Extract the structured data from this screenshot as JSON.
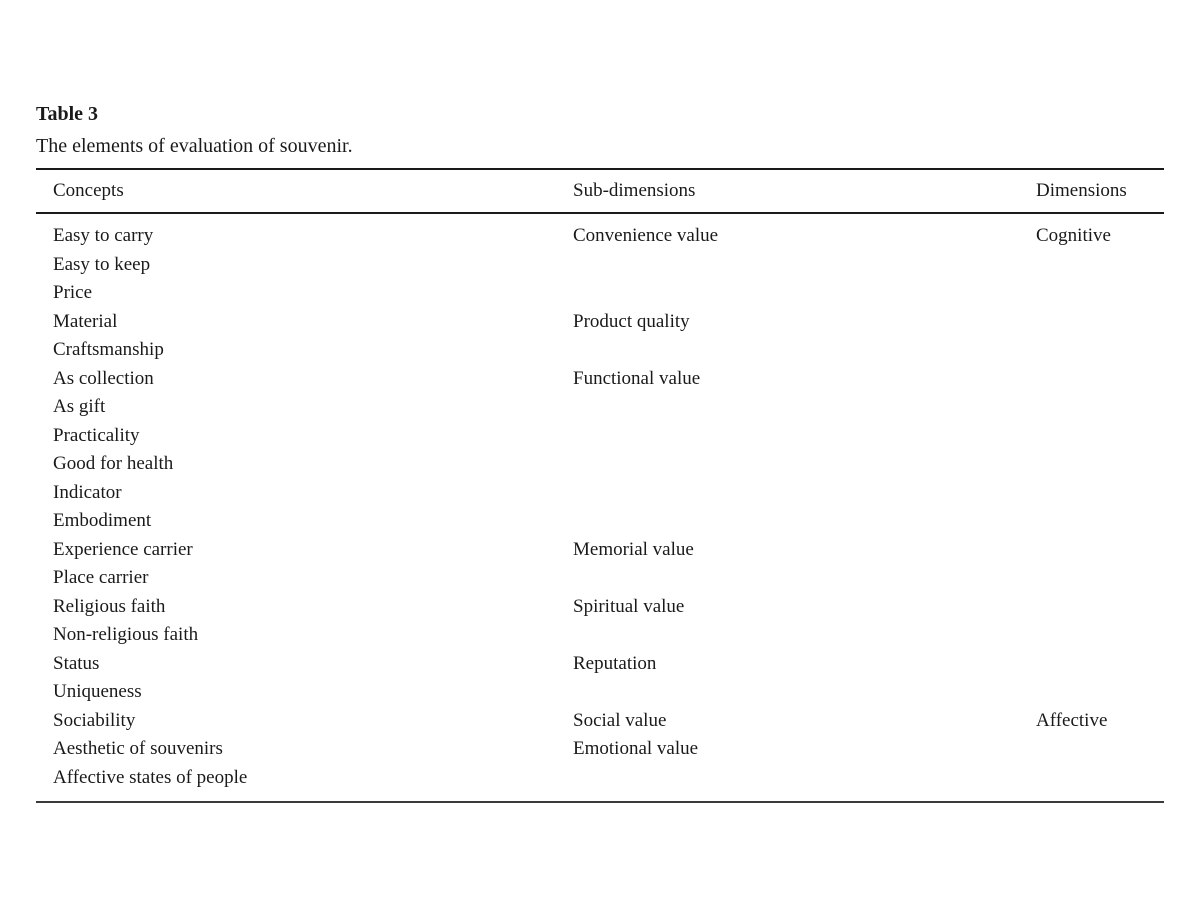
{
  "table": {
    "label": "Table 3",
    "caption": "The elements of evaluation of souvenir.",
    "columns": [
      "Concepts",
      "Sub-dimensions",
      "Dimensions"
    ],
    "rows": [
      {
        "concept": "Easy to carry",
        "sub": "Convenience value",
        "dim": "Cognitive"
      },
      {
        "concept": "Easy to keep",
        "sub": "",
        "dim": ""
      },
      {
        "concept": "Price",
        "sub": "",
        "dim": ""
      },
      {
        "concept": "Material",
        "sub": "Product quality",
        "dim": ""
      },
      {
        "concept": "Craftsmanship",
        "sub": "",
        "dim": ""
      },
      {
        "concept": "As collection",
        "sub": "Functional value",
        "dim": ""
      },
      {
        "concept": "As gift",
        "sub": "",
        "dim": ""
      },
      {
        "concept": "Practicality",
        "sub": "",
        "dim": ""
      },
      {
        "concept": "Good for health",
        "sub": "",
        "dim": ""
      },
      {
        "concept": "Indicator",
        "sub": "",
        "dim": ""
      },
      {
        "concept": "Embodiment",
        "sub": "",
        "dim": ""
      },
      {
        "concept": "Experience carrier",
        "sub": "Memorial value",
        "dim": ""
      },
      {
        "concept": "Place carrier",
        "sub": "",
        "dim": ""
      },
      {
        "concept": "Religious faith",
        "sub": "Spiritual value",
        "dim": ""
      },
      {
        "concept": "Non-religious faith",
        "sub": "",
        "dim": ""
      },
      {
        "concept": "Status",
        "sub": "Reputation",
        "dim": ""
      },
      {
        "concept": "Uniqueness",
        "sub": "",
        "dim": ""
      },
      {
        "concept": "Sociability",
        "sub": "Social value",
        "dim": "Affective"
      },
      {
        "concept": "Aesthetic of souvenirs",
        "sub": "Emotional value",
        "dim": ""
      },
      {
        "concept": "Affective states of people",
        "sub": "",
        "dim": ""
      }
    ]
  },
  "colors": {
    "text": "#1a1a1a",
    "rule": "#1a1a1a",
    "background": "#ffffff"
  }
}
